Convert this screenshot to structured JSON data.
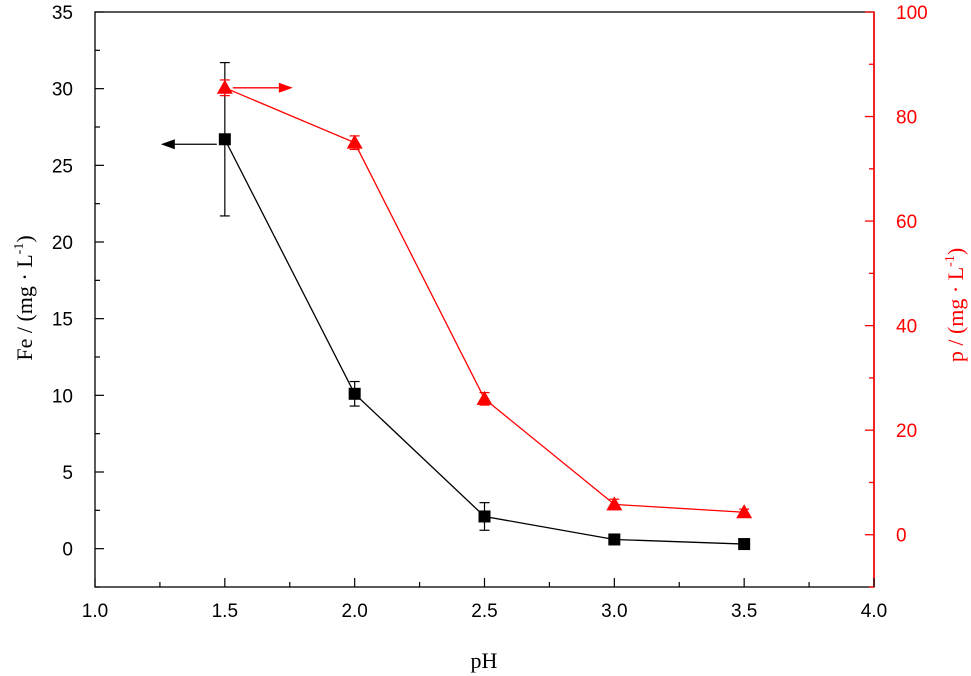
{
  "chart_data": {
    "type": "line",
    "title": "",
    "xlabel": "pH",
    "xlim": [
      1.0,
      4.0
    ],
    "ylim_left": [
      -2.5,
      35
    ],
    "ylim_right": [
      -10,
      100
    ],
    "x_ticks": [
      "1.0",
      "1.5",
      "2.0",
      "2.5",
      "3.0",
      "3.5",
      "4.0"
    ],
    "y_left_ticks": [
      "0",
      "5",
      "10",
      "15",
      "20",
      "25",
      "30",
      "35"
    ],
    "y_right_ticks": [
      "0",
      "20",
      "40",
      "60",
      "80",
      "100"
    ],
    "y_left_label": {
      "prefix": "Fe / (mg · L",
      "sup": "-1",
      "suffix": ")"
    },
    "y_right_label": {
      "prefix": "p / (mg · L",
      "sup": "-1",
      "suffix": ")"
    },
    "colors": {
      "fe": "#000000",
      "p": "#ff0000"
    },
    "series": [
      {
        "key": "fe",
        "axis": "left",
        "marker": "square",
        "x": [
          1.5,
          2.0,
          2.5,
          3.0,
          3.5
        ],
        "y": [
          26.7,
          10.1,
          2.1,
          0.6,
          0.3
        ],
        "err": [
          5.0,
          0.8,
          0.9,
          0.1,
          0.1
        ]
      },
      {
        "key": "p",
        "axis": "right",
        "marker": "triangle",
        "x": [
          1.5,
          2.0,
          2.5,
          3.0,
          3.5
        ],
        "y": [
          85.5,
          75.0,
          26.0,
          5.8,
          4.3
        ],
        "err": [
          1.5,
          1.3,
          1.2,
          1.0,
          0.6
        ]
      }
    ]
  }
}
